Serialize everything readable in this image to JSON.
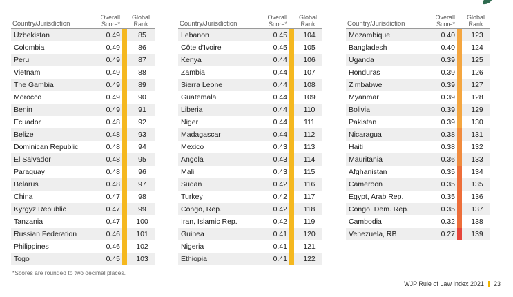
{
  "headers": {
    "country": "Country/Jurisdiction",
    "score_line1": "Overall",
    "score_line2": "Score*",
    "rank_line1": "Global",
    "rank_line2": "Rank"
  },
  "colors": {
    "yellow": "#f5b81f",
    "orange_light": "#f4a640",
    "orange": "#f08b3e",
    "orange_dark": "#ed6e3a",
    "red": "#e5453a",
    "leaf": "#2f6b4f"
  },
  "columns": [
    [
      {
        "country": "Uzbekistan",
        "score": "0.49",
        "rank": "85",
        "level": "yellow"
      },
      {
        "country": "Colombia",
        "score": "0.49",
        "rank": "86",
        "level": "yellow"
      },
      {
        "country": "Peru",
        "score": "0.49",
        "rank": "87",
        "level": "yellow"
      },
      {
        "country": "Vietnam",
        "score": "0.49",
        "rank": "88",
        "level": "yellow"
      },
      {
        "country": "The Gambia",
        "score": "0.49",
        "rank": "89",
        "level": "yellow"
      },
      {
        "country": "Morocco",
        "score": "0.49",
        "rank": "90",
        "level": "yellow"
      },
      {
        "country": "Benin",
        "score": "0.49",
        "rank": "91",
        "level": "yellow"
      },
      {
        "country": "Ecuador",
        "score": "0.48",
        "rank": "92",
        "level": "yellow"
      },
      {
        "country": "Belize",
        "score": "0.48",
        "rank": "93",
        "level": "yellow"
      },
      {
        "country": "Dominican Republic",
        "score": "0.48",
        "rank": "94",
        "level": "yellow"
      },
      {
        "country": "El Salvador",
        "score": "0.48",
        "rank": "95",
        "level": "yellow"
      },
      {
        "country": "Paraguay",
        "score": "0.48",
        "rank": "96",
        "level": "yellow"
      },
      {
        "country": "Belarus",
        "score": "0.48",
        "rank": "97",
        "level": "yellow"
      },
      {
        "country": "China",
        "score": "0.47",
        "rank": "98",
        "level": "yellow"
      },
      {
        "country": "Kyrgyz Republic",
        "score": "0.47",
        "rank": "99",
        "level": "yellow"
      },
      {
        "country": "Tanzania",
        "score": "0.47",
        "rank": "100",
        "level": "yellow"
      },
      {
        "country": "Russian Federation",
        "score": "0.46",
        "rank": "101",
        "level": "yellow"
      },
      {
        "country": "Philippines",
        "score": "0.46",
        "rank": "102",
        "level": "yellow"
      },
      {
        "country": "Togo",
        "score": "0.45",
        "rank": "103",
        "level": "yellow"
      }
    ],
    [
      {
        "country": "Lebanon",
        "score": "0.45",
        "rank": "104",
        "level": "yellow"
      },
      {
        "country": "Côte d'Ivoire",
        "score": "0.45",
        "rank": "105",
        "level": "yellow"
      },
      {
        "country": "Kenya",
        "score": "0.44",
        "rank": "106",
        "level": "yellow"
      },
      {
        "country": "Zambia",
        "score": "0.44",
        "rank": "107",
        "level": "yellow"
      },
      {
        "country": "Sierra Leone",
        "score": "0.44",
        "rank": "108",
        "level": "yellow"
      },
      {
        "country": "Guatemala",
        "score": "0.44",
        "rank": "109",
        "level": "yellow"
      },
      {
        "country": "Liberia",
        "score": "0.44",
        "rank": "110",
        "level": "yellow"
      },
      {
        "country": "Niger",
        "score": "0.44",
        "rank": "111",
        "level": "yellow"
      },
      {
        "country": "Madagascar",
        "score": "0.44",
        "rank": "112",
        "level": "yellow"
      },
      {
        "country": "Mexico",
        "score": "0.43",
        "rank": "113",
        "level": "yellow"
      },
      {
        "country": "Angola",
        "score": "0.43",
        "rank": "114",
        "level": "yellow"
      },
      {
        "country": "Mali",
        "score": "0.43",
        "rank": "115",
        "level": "yellow"
      },
      {
        "country": "Sudan",
        "score": "0.42",
        "rank": "116",
        "level": "yellow"
      },
      {
        "country": "Turkey",
        "score": "0.42",
        "rank": "117",
        "level": "yellow"
      },
      {
        "country": "Congo, Rep.",
        "score": "0.42",
        "rank": "118",
        "level": "yellow"
      },
      {
        "country": "Iran, Islamic Rep.",
        "score": "0.42",
        "rank": "119",
        "level": "yellow"
      },
      {
        "country": "Guinea",
        "score": "0.41",
        "rank": "120",
        "level": "yellow"
      },
      {
        "country": "Nigeria",
        "score": "0.41",
        "rank": "121",
        "level": "yellow"
      },
      {
        "country": "Ethiopia",
        "score": "0.41",
        "rank": "122",
        "level": "yellow"
      }
    ],
    [
      {
        "country": "Mozambique",
        "score": "0.40",
        "rank": "123",
        "level": "orange_light"
      },
      {
        "country": "Bangladesh",
        "score": "0.40",
        "rank": "124",
        "level": "orange_light"
      },
      {
        "country": "Uganda",
        "score": "0.39",
        "rank": "125",
        "level": "orange_light"
      },
      {
        "country": "Honduras",
        "score": "0.39",
        "rank": "126",
        "level": "orange_light"
      },
      {
        "country": "Zimbabwe",
        "score": "0.39",
        "rank": "127",
        "level": "orange_light"
      },
      {
        "country": "Myanmar",
        "score": "0.39",
        "rank": "128",
        "level": "orange_light"
      },
      {
        "country": "Bolivia",
        "score": "0.39",
        "rank": "129",
        "level": "orange_light"
      },
      {
        "country": "Pakistan",
        "score": "0.39",
        "rank": "130",
        "level": "orange_light"
      },
      {
        "country": "Nicaragua",
        "score": "0.38",
        "rank": "131",
        "level": "orange"
      },
      {
        "country": "Haiti",
        "score": "0.38",
        "rank": "132",
        "level": "orange"
      },
      {
        "country": "Mauritania",
        "score": "0.36",
        "rank": "133",
        "level": "orange"
      },
      {
        "country": "Afghanistan",
        "score": "0.35",
        "rank": "134",
        "level": "orange_dark"
      },
      {
        "country": "Cameroon",
        "score": "0.35",
        "rank": "135",
        "level": "orange_dark"
      },
      {
        "country": "Egypt, Arab Rep.",
        "score": "0.35",
        "rank": "136",
        "level": "orange_dark"
      },
      {
        "country": "Congo, Dem. Rep.",
        "score": "0.35",
        "rank": "137",
        "level": "orange_dark"
      },
      {
        "country": "Cambodia",
        "score": "0.32",
        "rank": "138",
        "level": "orange_dark"
      },
      {
        "country": "Venezuela, RB",
        "score": "0.27",
        "rank": "139",
        "level": "red"
      }
    ]
  ],
  "footnote": "*Scores are rounded to two decimal places.",
  "footer": {
    "publication": "WJP Rule of Law Index 2021",
    "page": "23"
  }
}
